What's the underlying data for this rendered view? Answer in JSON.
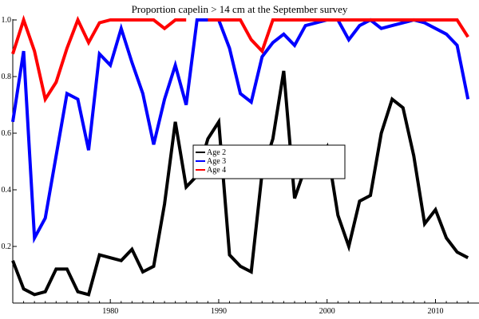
{
  "chart_data": {
    "type": "line",
    "title": "Proportion capelin > 14 cm at the September survey",
    "xlabel": "",
    "ylabel": "",
    "xlim": [
      1971,
      2013.5
    ],
    "ylim": [
      0,
      1.0
    ],
    "x_ticks": [
      1980,
      1990,
      2000,
      2010
    ],
    "y_ticks": [
      0.2,
      0.4,
      0.6,
      0.8,
      1.0
    ],
    "y_tick_labels": [
      "0.2",
      "0.4",
      "0.6",
      "0.8",
      "1.0"
    ],
    "grid": false,
    "legend": {
      "position": "center",
      "entries": [
        "Age 2",
        "Age 3",
        "Age 4"
      ]
    },
    "series": [
      {
        "name": "Age 2",
        "color": "#000000",
        "x": [
          1971,
          1972,
          1973,
          1974,
          1975,
          1976,
          1977,
          1978,
          1979,
          1980,
          1981,
          1982,
          1983,
          1984,
          1985,
          1986,
          1987,
          1988,
          1989,
          1990,
          1991,
          1992,
          1993,
          1994,
          1995,
          1996,
          1997,
          1998,
          1999,
          2000,
          2001,
          2002,
          2003,
          2004,
          2005,
          2006,
          2007,
          2008,
          2009,
          2010,
          2011,
          2012,
          2013
        ],
        "values": [
          0.15,
          0.05,
          0.03,
          0.04,
          0.12,
          0.12,
          0.04,
          0.03,
          0.17,
          0.16,
          0.15,
          0.19,
          0.11,
          0.13,
          0.35,
          0.64,
          0.41,
          0.45,
          0.58,
          0.64,
          0.17,
          0.13,
          0.11,
          0.46,
          0.58,
          0.82,
          0.37,
          0.48,
          0.48,
          0.55,
          0.31,
          0.2,
          0.36,
          0.38,
          0.6,
          0.72,
          0.69,
          0.52,
          0.28,
          0.33,
          0.23,
          0.18,
          0.16
        ]
      },
      {
        "name": "Age 3",
        "color": "#0000ff",
        "x": [
          1971,
          1972,
          1973,
          1974,
          1975,
          1976,
          1977,
          1978,
          1979,
          1980,
          1981,
          1982,
          1983,
          1984,
          1985,
          1986,
          1987,
          1988,
          1989,
          1990,
          1991,
          1992,
          1993,
          1994,
          1995,
          1996,
          1997,
          1998,
          1999,
          2000,
          2001,
          2002,
          2003,
          2004,
          2005,
          2006,
          2007,
          2008,
          2009,
          2010,
          2011,
          2012,
          2013
        ],
        "values": [
          0.64,
          0.89,
          0.23,
          0.3,
          0.52,
          0.74,
          0.72,
          0.54,
          0.88,
          0.84,
          0.97,
          0.85,
          0.74,
          0.56,
          0.72,
          0.84,
          0.7,
          1.0,
          1.0,
          1.0,
          0.9,
          0.74,
          0.71,
          0.87,
          0.92,
          0.95,
          0.91,
          0.98,
          0.99,
          1.0,
          1.0,
          0.93,
          0.98,
          1.0,
          0.97,
          0.98,
          0.99,
          1.0,
          0.99,
          0.97,
          0.95,
          0.91,
          0.72
        ]
      },
      {
        "name": "Age 4",
        "color": "#ff0000",
        "x": [
          1971,
          1972,
          1973,
          1974,
          1975,
          1976,
          1977,
          1978,
          1979,
          1980,
          1981,
          1982,
          1983,
          1984,
          1985,
          1986,
          1987,
          null,
          1989,
          1990,
          1991,
          1992,
          1993,
          1994,
          1995,
          1996,
          1997,
          1998,
          1999,
          2000,
          2001,
          2002,
          2003,
          2004,
          2005,
          2006,
          2007,
          2008,
          2009,
          2010,
          2011,
          2012,
          2013
        ],
        "values": [
          0.88,
          1.0,
          0.89,
          0.72,
          0.78,
          0.9,
          1.0,
          0.92,
          0.99,
          1.0,
          1.0,
          1.0,
          1.0,
          1.0,
          0.97,
          1.0,
          1.0,
          null,
          1.0,
          1.0,
          1.0,
          1.0,
          0.93,
          0.89,
          1.0,
          1.0,
          1.0,
          1.0,
          1.0,
          1.0,
          1.0,
          1.0,
          1.0,
          1.0,
          1.0,
          1.0,
          1.0,
          1.0,
          1.0,
          1.0,
          1.0,
          1.0,
          0.94
        ]
      }
    ]
  }
}
